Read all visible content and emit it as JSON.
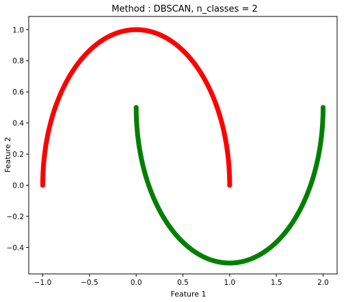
{
  "chart_data": {
    "type": "scatter",
    "title": "Method : DBSCAN, n_classes = 2",
    "xlabel": "Feature 1",
    "ylabel": "Feature 2",
    "xlim": [
      -1.15,
      2.15
    ],
    "ylim": [
      -0.57,
      1.085
    ],
    "xticks": [
      -1.0,
      -0.5,
      0.0,
      0.5,
      1.0,
      1.5,
      2.0
    ],
    "xtick_labels": [
      "−1.0",
      "−0.5",
      "0.0",
      "0.5",
      "1.0",
      "1.5",
      "2.0"
    ],
    "yticks": [
      -0.4,
      -0.2,
      0.0,
      0.2,
      0.4,
      0.6,
      0.8,
      1.0
    ],
    "ytick_labels": [
      "−0.4",
      "−0.2",
      "0.0",
      "0.2",
      "0.4",
      "0.6",
      "0.8",
      "1.0"
    ],
    "grid": false,
    "legend": false,
    "series": [
      {
        "color": "#ff0000",
        "shape": "upper half-moon: x = cos(t), y = sin(t), t from 0 to 180 degrees",
        "x": [
          1.0,
          0.966,
          0.866,
          0.707,
          0.5,
          0.259,
          0.0,
          -0.259,
          -0.5,
          -0.707,
          -0.866,
          -0.966,
          -1.0
        ],
        "y": [
          0.0,
          0.259,
          0.5,
          0.707,
          0.866,
          0.966,
          1.0,
          0.966,
          0.866,
          0.707,
          0.5,
          0.259,
          0.0
        ]
      },
      {
        "color": "#008000",
        "shape": "lower half-moon: x = 1 - cos(t), y = 0.5 - sin(t), t from 0 to 180 degrees",
        "x": [
          0.0,
          0.034,
          0.134,
          0.293,
          0.5,
          0.741,
          1.0,
          1.259,
          1.5,
          1.707,
          1.866,
          1.966,
          2.0
        ],
        "y": [
          0.5,
          0.241,
          0.0,
          -0.207,
          -0.366,
          -0.466,
          -0.5,
          -0.466,
          -0.366,
          -0.207,
          0.0,
          0.241,
          0.5
        ]
      }
    ]
  }
}
